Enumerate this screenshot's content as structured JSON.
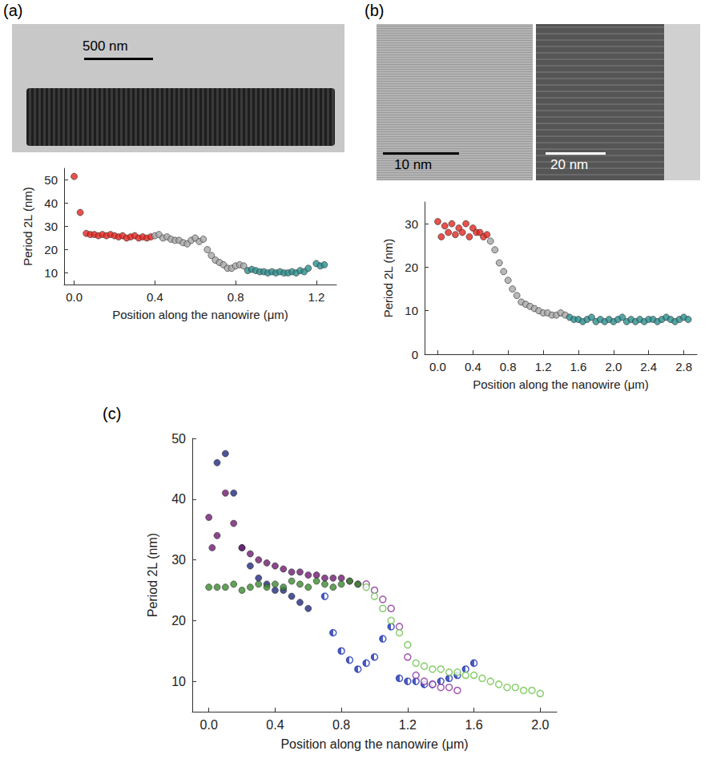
{
  "chart_data": [
    {
      "panel": "(a)",
      "type": "scatter",
      "images": [
        {
          "scale_bar": "500 nm"
        }
      ],
      "x_label": "Position along the nanowire (μm)",
      "y_label": "Period 2L (nm)",
      "xlim": [
        -0.05,
        1.3
      ],
      "xticks": [
        {
          "value": 0,
          "label": "0.0"
        },
        0.4,
        0.8,
        1.2
      ],
      "ylim": [
        5,
        55
      ],
      "yticks": [
        10,
        20,
        30,
        40,
        50
      ],
      "grid": false,
      "series": [
        {
          "color": "#e3261f",
          "marker": "filled",
          "x": [
            0.0,
            0.03,
            0.06,
            0.08,
            0.1,
            0.12,
            0.14,
            0.16,
            0.18,
            0.2,
            0.22,
            0.24,
            0.26,
            0.28,
            0.3,
            0.32,
            0.34,
            0.36,
            0.38
          ],
          "values": [
            51.5,
            36,
            27,
            26.5,
            26.5,
            26,
            26.5,
            26,
            26.5,
            26,
            25.5,
            26,
            25,
            25.5,
            26,
            25,
            25.5,
            25,
            25.5
          ]
        },
        {
          "color": "#a6a6a6",
          "marker": "filled",
          "x": [
            0.4,
            0.42,
            0.44,
            0.46,
            0.48,
            0.5,
            0.52,
            0.54,
            0.56,
            0.58,
            0.6,
            0.62,
            0.64,
            0.66,
            0.68,
            0.7,
            0.72,
            0.74,
            0.76,
            0.78,
            0.8,
            0.82,
            0.84
          ],
          "values": [
            26,
            26.5,
            25,
            25.5,
            24.5,
            24,
            24,
            23,
            22.5,
            24,
            25,
            23.5,
            24.5,
            20,
            17.5,
            15.5,
            14.5,
            13.5,
            12,
            12,
            13,
            13.5,
            13
          ]
        },
        {
          "color": "#2a8f8f",
          "marker": "filled",
          "x": [
            0.86,
            0.88,
            0.9,
            0.92,
            0.94,
            0.96,
            0.98,
            1.0,
            1.02,
            1.04,
            1.06,
            1.08,
            1.1,
            1.12,
            1.14,
            1.16,
            1.2,
            1.22,
            1.24
          ],
          "values": [
            11,
            11.5,
            11,
            10.5,
            10.5,
            10,
            10.5,
            10,
            10.5,
            10,
            10,
            10.5,
            10,
            11,
            10.5,
            12,
            14,
            13,
            13.5
          ]
        }
      ]
    },
    {
      "panel": "(b)",
      "type": "scatter",
      "images": [
        {
          "scale_bar": "10 nm"
        },
        {
          "scale_bar": "20 nm"
        }
      ],
      "x_label": "Position along the nanowire (μm)",
      "y_label": "Period 2L (nm)",
      "xlim": [
        -0.15,
        2.95
      ],
      "xticks": [
        {
          "value": 0,
          "label": "0.0"
        },
        0.4,
        0.8,
        1.2,
        1.6,
        {
          "value": 2,
          "label": "2.0"
        },
        2.4,
        2.8
      ],
      "ylim": [
        0,
        35
      ],
      "yticks": [
        0,
        10,
        20,
        30
      ],
      "grid": false,
      "series": [
        {
          "color": "#e3261f",
          "marker": "filled",
          "x": [
            0,
            0.04,
            0.08,
            0.12,
            0.16,
            0.2,
            0.24,
            0.28,
            0.32,
            0.36,
            0.4,
            0.44,
            0.48,
            0.52,
            0.56
          ],
          "values": [
            30.5,
            27,
            29.5,
            28,
            30,
            27.5,
            29,
            28,
            30,
            27,
            29,
            28,
            28,
            27,
            27.5
          ]
        },
        {
          "color": "#a6a6a6",
          "marker": "filled",
          "x": [
            0.6,
            0.65,
            0.7,
            0.75,
            0.8,
            0.85,
            0.9,
            0.95,
            1.0,
            1.05,
            1.1,
            1.15,
            1.2,
            1.25,
            1.3,
            1.35,
            1.4,
            1.45
          ],
          "values": [
            26,
            24,
            21,
            19,
            17,
            15,
            13.5,
            12,
            11.5,
            11,
            10.5,
            10,
            9.5,
            9.5,
            9,
            9,
            9.5,
            9
          ]
        },
        {
          "color": "#2a8f8f",
          "marker": "filled",
          "x": [
            1.5,
            1.55,
            1.6,
            1.65,
            1.7,
            1.75,
            1.8,
            1.85,
            1.9,
            1.95,
            2.0,
            2.05,
            2.1,
            2.15,
            2.2,
            2.25,
            2.3,
            2.35,
            2.4,
            2.45,
            2.5,
            2.55,
            2.6,
            2.65,
            2.7,
            2.75,
            2.8,
            2.85
          ],
          "values": [
            8.5,
            8,
            8,
            7.5,
            8,
            8.5,
            7.5,
            8,
            7.5,
            8,
            7.5,
            8,
            8.5,
            7.5,
            8,
            7.5,
            8,
            7.5,
            8,
            8,
            7.5,
            8,
            8.5,
            8,
            7.5,
            8,
            8.5,
            8
          ]
        }
      ]
    },
    {
      "panel": "(c)",
      "type": "scatter",
      "x_label": "Position along the nanowire (μm)",
      "y_label": "Period 2L (nm)",
      "xlim": [
        -0.1,
        2.1
      ],
      "xticks": [
        {
          "value": 0,
          "label": "0.0"
        },
        0.4,
        0.8,
        1.2,
        1.6,
        {
          "value": 2,
          "label": "2.0"
        }
      ],
      "ylim": [
        5,
        50
      ],
      "yticks": [
        10,
        20,
        30,
        40,
        50
      ],
      "grid": false,
      "series": [
        {
          "color": "#1f2a80",
          "marker": "filled",
          "x": [
            0.05,
            0.1,
            0.15,
            0.2,
            0.25,
            0.3,
            0.35,
            0.4,
            0.45,
            0.5,
            0.55,
            0.6
          ],
          "values": [
            46,
            47.5,
            41,
            32,
            29,
            27,
            26,
            25,
            25,
            24,
            23,
            22
          ]
        },
        {
          "color": "#2236b0",
          "marker": "half",
          "x": [
            0.7,
            0.75,
            0.8,
            0.85,
            0.9,
            0.95,
            1.0,
            1.05,
            1.1,
            1.15,
            1.2,
            1.25,
            1.3,
            1.35,
            1.4,
            1.45,
            1.5,
            1.55,
            1.6
          ],
          "values": [
            24,
            18,
            15,
            13.5,
            12,
            13,
            14,
            17,
            19,
            10.5,
            10,
            10,
            9.5,
            9.5,
            10,
            10.5,
            11,
            12,
            13
          ]
        },
        {
          "color": "#6e1a6e",
          "marker": "filled",
          "x": [
            0.0,
            0.02,
            0.05,
            0.1,
            0.15,
            0.2,
            0.25,
            0.3,
            0.35,
            0.4,
            0.45,
            0.5,
            0.55,
            0.6,
            0.65,
            0.7,
            0.75,
            0.8,
            0.85,
            0.9
          ],
          "values": [
            37,
            32,
            34,
            41,
            36,
            32,
            31,
            30,
            29.5,
            29,
            28.5,
            28,
            28,
            27.5,
            27.5,
            27,
            27,
            27,
            26.5,
            26
          ]
        },
        {
          "color": "#8a2f99",
          "marker": "open",
          "x": [
            0.95,
            1.0,
            1.05,
            1.1,
            1.15,
            1.2,
            1.25,
            1.3,
            1.35,
            1.4,
            1.45,
            1.5
          ],
          "values": [
            26,
            25,
            23.5,
            22,
            19,
            14,
            11,
            10,
            9.5,
            9,
            9,
            8.5
          ]
        },
        {
          "color": "#3a8a2e",
          "marker": "filled",
          "x": [
            0.0,
            0.05,
            0.1,
            0.15,
            0.2,
            0.25,
            0.3,
            0.35,
            0.4,
            0.45,
            0.5,
            0.55,
            0.6,
            0.65,
            0.7,
            0.75,
            0.8,
            0.85,
            0.9
          ],
          "values": [
            25.5,
            25.5,
            25.5,
            26,
            25,
            25.5,
            26,
            25.5,
            26,
            25.5,
            26.5,
            26,
            25.5,
            26.5,
            26,
            25.5,
            26,
            26.5,
            26
          ]
        },
        {
          "color": "#6cc24a",
          "marker": "open",
          "x": [
            0.95,
            1.0,
            1.05,
            1.1,
            1.15,
            1.2,
            1.25,
            1.3,
            1.35,
            1.4,
            1.45,
            1.5,
            1.55,
            1.6,
            1.65,
            1.7,
            1.75,
            1.8,
            1.85,
            1.9,
            1.95,
            2.0
          ],
          "values": [
            25.5,
            24,
            22,
            20,
            18,
            16,
            13,
            12.5,
            12,
            12,
            11.5,
            11.5,
            11,
            11,
            10.5,
            10,
            9.5,
            9,
            9,
            8.5,
            8.5,
            8
          ]
        }
      ]
    }
  ]
}
